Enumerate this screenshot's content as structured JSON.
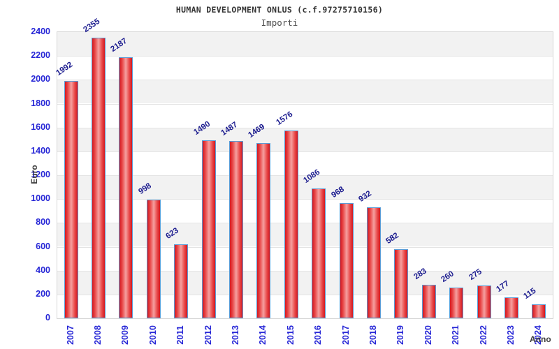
{
  "header": {
    "title": "HUMAN DEVELOPMENT ONLUS (c.f.97275710156)",
    "subtitle": "Importi"
  },
  "chart_data": {
    "type": "bar",
    "title": "HUMAN DEVELOPMENT ONLUS (c.f.97275710156)",
    "subtitle": "Importi",
    "xlabel": "Anno",
    "ylabel": "Euro",
    "categories": [
      "2007",
      "2008",
      "2009",
      "2010",
      "2011",
      "2012",
      "2013",
      "2014",
      "2015",
      "2016",
      "2017",
      "2018",
      "2019",
      "2020",
      "2021",
      "2022",
      "2023",
      "2024"
    ],
    "values": [
      1992,
      2355,
      2187,
      998,
      623,
      1490,
      1487,
      1469,
      1576,
      1086,
      968,
      932,
      582,
      283,
      260,
      275,
      177,
      115
    ],
    "ylim": [
      0,
      2400
    ],
    "ytick_step": 200,
    "yticks": [
      0,
      200,
      400,
      600,
      800,
      1000,
      1200,
      1400,
      1600,
      1800,
      2000,
      2200,
      2400
    ],
    "grid": "horizontal-bands-alternating",
    "legend": "none",
    "value_labels": "above-bars-rotated",
    "colors": {
      "bar_edge": "#d21820",
      "bar_mid": "#e94848",
      "bar_center": "#f5a0a0",
      "bar_border": "#5b9bd5",
      "tick_label": "#2626d6",
      "value_label": "#1c1c8f",
      "axis_title": "#3d3d3d",
      "band_gray": "#f2f2f2",
      "band_white": "#ffffff",
      "gridline": "#e4e4e4",
      "plot_border": "#d6d6d6",
      "title": "#333333",
      "subtitle": "#4f4f4f"
    }
  }
}
